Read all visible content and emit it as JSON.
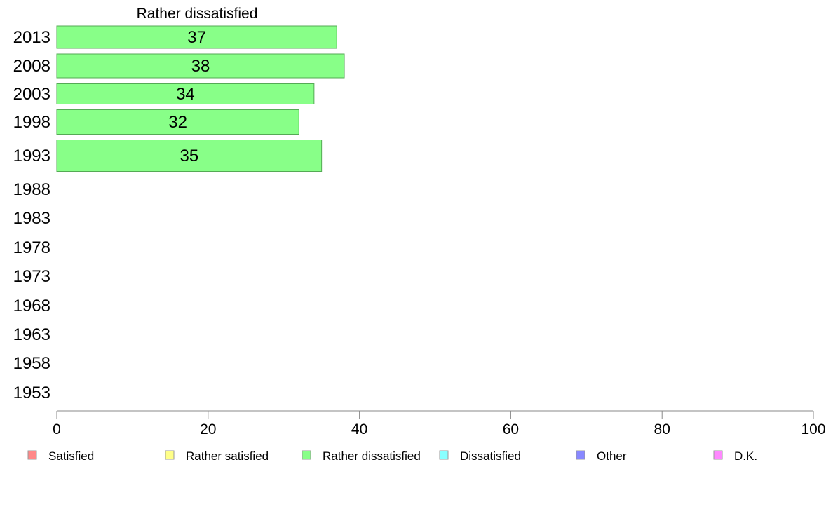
{
  "chart_data": {
    "type": "bar",
    "orientation": "horizontal",
    "title": "Rather dissatisfied",
    "categories": [
      "2013",
      "2008",
      "2003",
      "1998",
      "1993",
      "1988",
      "1983",
      "1978",
      "1973",
      "1968",
      "1963",
      "1958",
      "1953"
    ],
    "series": [
      {
        "name": "Rather dissatisfied",
        "values": [
          37,
          38,
          34,
          32,
          35,
          null,
          null,
          null,
          null,
          null,
          null,
          null,
          null
        ]
      }
    ],
    "xlim": [
      0,
      100
    ],
    "xticks": [
      0,
      20,
      40,
      60,
      80,
      100
    ],
    "grid": false,
    "bar_color": "#88ff88",
    "bar_stroke": "#55aa55",
    "legend_position": "bottom",
    "legend": [
      {
        "label": "Satisfied",
        "color": "#ff8888"
      },
      {
        "label": "Rather satisfied",
        "color": "#ffff88"
      },
      {
        "label": "Rather dissatisfied",
        "color": "#88ff88"
      },
      {
        "label": "Dissatisfied",
        "color": "#88ffff"
      },
      {
        "label": "Other",
        "color": "#8888ff"
      },
      {
        "label": "D.K.",
        "color": "#ff88ff"
      }
    ]
  }
}
